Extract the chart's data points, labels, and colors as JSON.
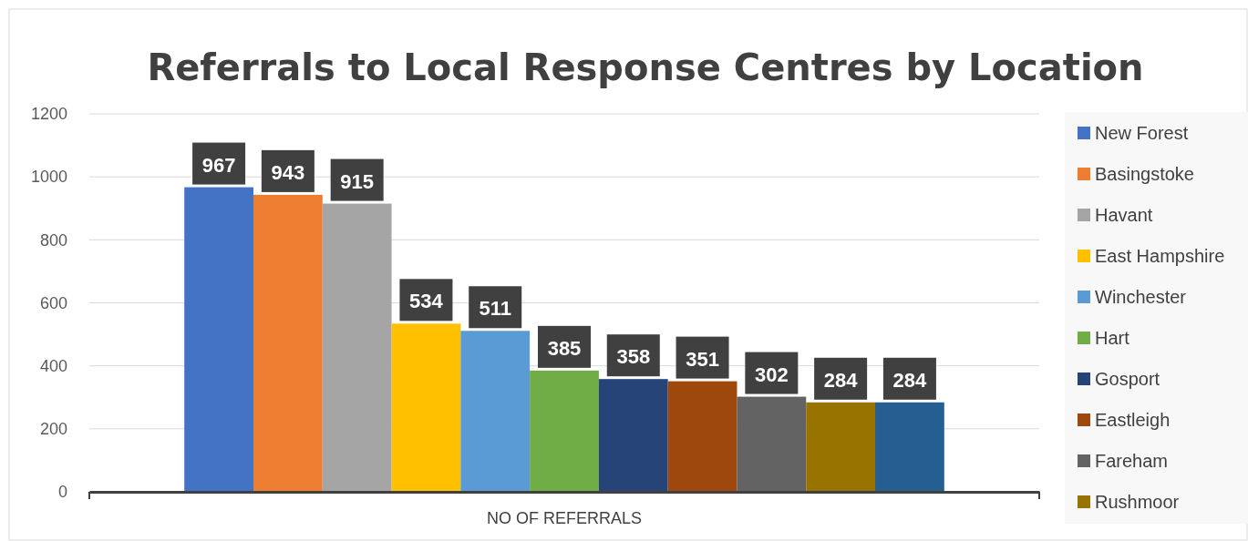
{
  "chart_data": {
    "type": "bar",
    "title": "Referrals to Local Response Centres by Location",
    "categories": [
      "NO OF REFERRALS"
    ],
    "series": [
      {
        "name": "New Forest",
        "color": "#4472c4",
        "values": [
          967
        ]
      },
      {
        "name": "Basingstoke",
        "color": "#ed7d31",
        "values": [
          943
        ]
      },
      {
        "name": "Havant",
        "color": "#a5a5a5",
        "values": [
          915
        ]
      },
      {
        "name": "East Hampshire",
        "color": "#ffc000",
        "values": [
          534
        ]
      },
      {
        "name": "Winchester",
        "color": "#5b9bd5",
        "values": [
          511
        ]
      },
      {
        "name": "Hart",
        "color": "#70ad47",
        "values": [
          385
        ]
      },
      {
        "name": "Gosport",
        "color": "#264478",
        "values": [
          358
        ]
      },
      {
        "name": "Eastleigh",
        "color": "#9e480e",
        "values": [
          351
        ]
      },
      {
        "name": "Fareham",
        "color": "#636363",
        "values": [
          302
        ]
      },
      {
        "name": "Rushmoor",
        "color": "#997300",
        "values": [
          284
        ]
      },
      {
        "color": "#255e91",
        "values": [
          284
        ]
      }
    ],
    "ylim": [
      0,
      1200
    ],
    "yticks": [
      0,
      200,
      400,
      600,
      800,
      1000,
      1200
    ],
    "grid": "y",
    "legend": "right",
    "data_labels": true
  }
}
